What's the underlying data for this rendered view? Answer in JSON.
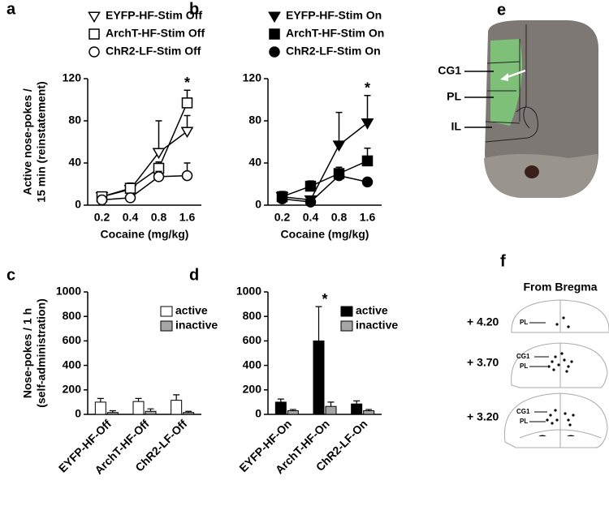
{
  "chart_data": [
    {
      "type": "line",
      "label": "a",
      "ylabel": [
        "Active nose-pokes /",
        "15 min (reinstatement)"
      ],
      "xlabel": "Cocaine (mg/kg)",
      "categories": [
        "0.2",
        "0.4",
        "0.8",
        "1.6"
      ],
      "ylim": [
        0,
        120
      ],
      "yticks": [
        0,
        40,
        80,
        120
      ],
      "series": [
        {
          "name": "EYFP-HF-Stim Off",
          "color": "#000000",
          "marker": "triangle-down",
          "filled": false,
          "values": [
            8,
            15,
            50,
            70
          ],
          "errors": [
            4,
            3,
            30,
            15
          ]
        },
        {
          "name": "ArchT-HF-Stim Off",
          "color": "#000000",
          "marker": "square",
          "filled": false,
          "values": [
            8,
            16,
            35,
            97
          ],
          "errors": [
            4,
            5,
            6,
            12
          ]
        },
        {
          "name": "ChR2-LF-Stim Off",
          "color": "#000000",
          "marker": "circle",
          "filled": false,
          "values": [
            5,
            7,
            27,
            28
          ],
          "errors": [
            3,
            3,
            5,
            12
          ]
        }
      ],
      "annotations": [
        {
          "text": "*",
          "category": "1.6"
        }
      ]
    },
    {
      "type": "line",
      "label": "b",
      "xlabel": "Cocaine (mg/kg)",
      "categories": [
        "0.2",
        "0.4",
        "0.8",
        "1.6"
      ],
      "ylim": [
        0,
        120
      ],
      "yticks": [
        0,
        40,
        80,
        120
      ],
      "series": [
        {
          "name": "EYFP-HF-Stim On",
          "color": "#000000",
          "marker": "triangle-down",
          "filled": true,
          "values": [
            8,
            5,
            57,
            78
          ],
          "errors": [
            4,
            3,
            31,
            26
          ]
        },
        {
          "name": "ArchT-HF-Stim On",
          "color": "#000000",
          "marker": "square",
          "filled": true,
          "values": [
            8,
            18,
            30,
            42
          ],
          "errors": [
            5,
            5,
            6,
            12
          ]
        },
        {
          "name": "ChR2-LF-Stim On",
          "color": "#000000",
          "marker": "circle",
          "filled": true,
          "values": [
            6,
            3,
            28,
            22
          ],
          "errors": [
            3,
            2,
            5,
            3
          ]
        }
      ],
      "annotations": [
        {
          "text": "*",
          "category": "1.6"
        }
      ]
    },
    {
      "type": "bar",
      "label": "c",
      "ylabel": [
        "Nose-pokes / 1 h",
        "(self-administration)"
      ],
      "categories": [
        "EYFP-HF-Off",
        "ArchT-HF-Off",
        "ChR2-LF-Off"
      ],
      "ylim": [
        0,
        1000
      ],
      "yticks": [
        0,
        200,
        400,
        600,
        800,
        1000
      ],
      "series": [
        {
          "name": "active",
          "color": "#ffffff",
          "values": [
            100,
            105,
            115
          ],
          "errors": [
            30,
            25,
            45
          ]
        },
        {
          "name": "inactive",
          "color": "#a6a6a6",
          "values": [
            15,
            25,
            15
          ],
          "errors": [
            15,
            20,
            10
          ]
        }
      ]
    },
    {
      "type": "bar",
      "label": "d",
      "categories": [
        "EYFP-HF-On",
        "ArchT-HF-On",
        "ChR2-LF-On"
      ],
      "ylim": [
        0,
        1000
      ],
      "yticks": [
        0,
        200,
        400,
        600,
        800,
        1000
      ],
      "series": [
        {
          "name": "active",
          "color": "#000000",
          "values": [
            100,
            600,
            85
          ],
          "errors": [
            25,
            280,
            25
          ]
        },
        {
          "name": "inactive",
          "color": "#a6a6a6",
          "values": [
            30,
            65,
            30
          ],
          "errors": [
            10,
            35,
            10
          ]
        }
      ],
      "annotations": [
        {
          "text": "*",
          "category": "ArchT-HF-On"
        }
      ]
    }
  ],
  "figure": {
    "e": {
      "label": "e",
      "regions": [
        "CG1",
        "PL",
        "IL"
      ]
    },
    "f": {
      "label": "f",
      "title": "From Bregma",
      "sections": [
        {
          "level": "+ 4.20",
          "regions": [
            "PL"
          ]
        },
        {
          "level": "+ 3.70",
          "regions": [
            "CG1",
            "PL"
          ]
        },
        {
          "level": "+ 3.20",
          "regions": [
            "CG1",
            "PL"
          ]
        }
      ]
    }
  }
}
